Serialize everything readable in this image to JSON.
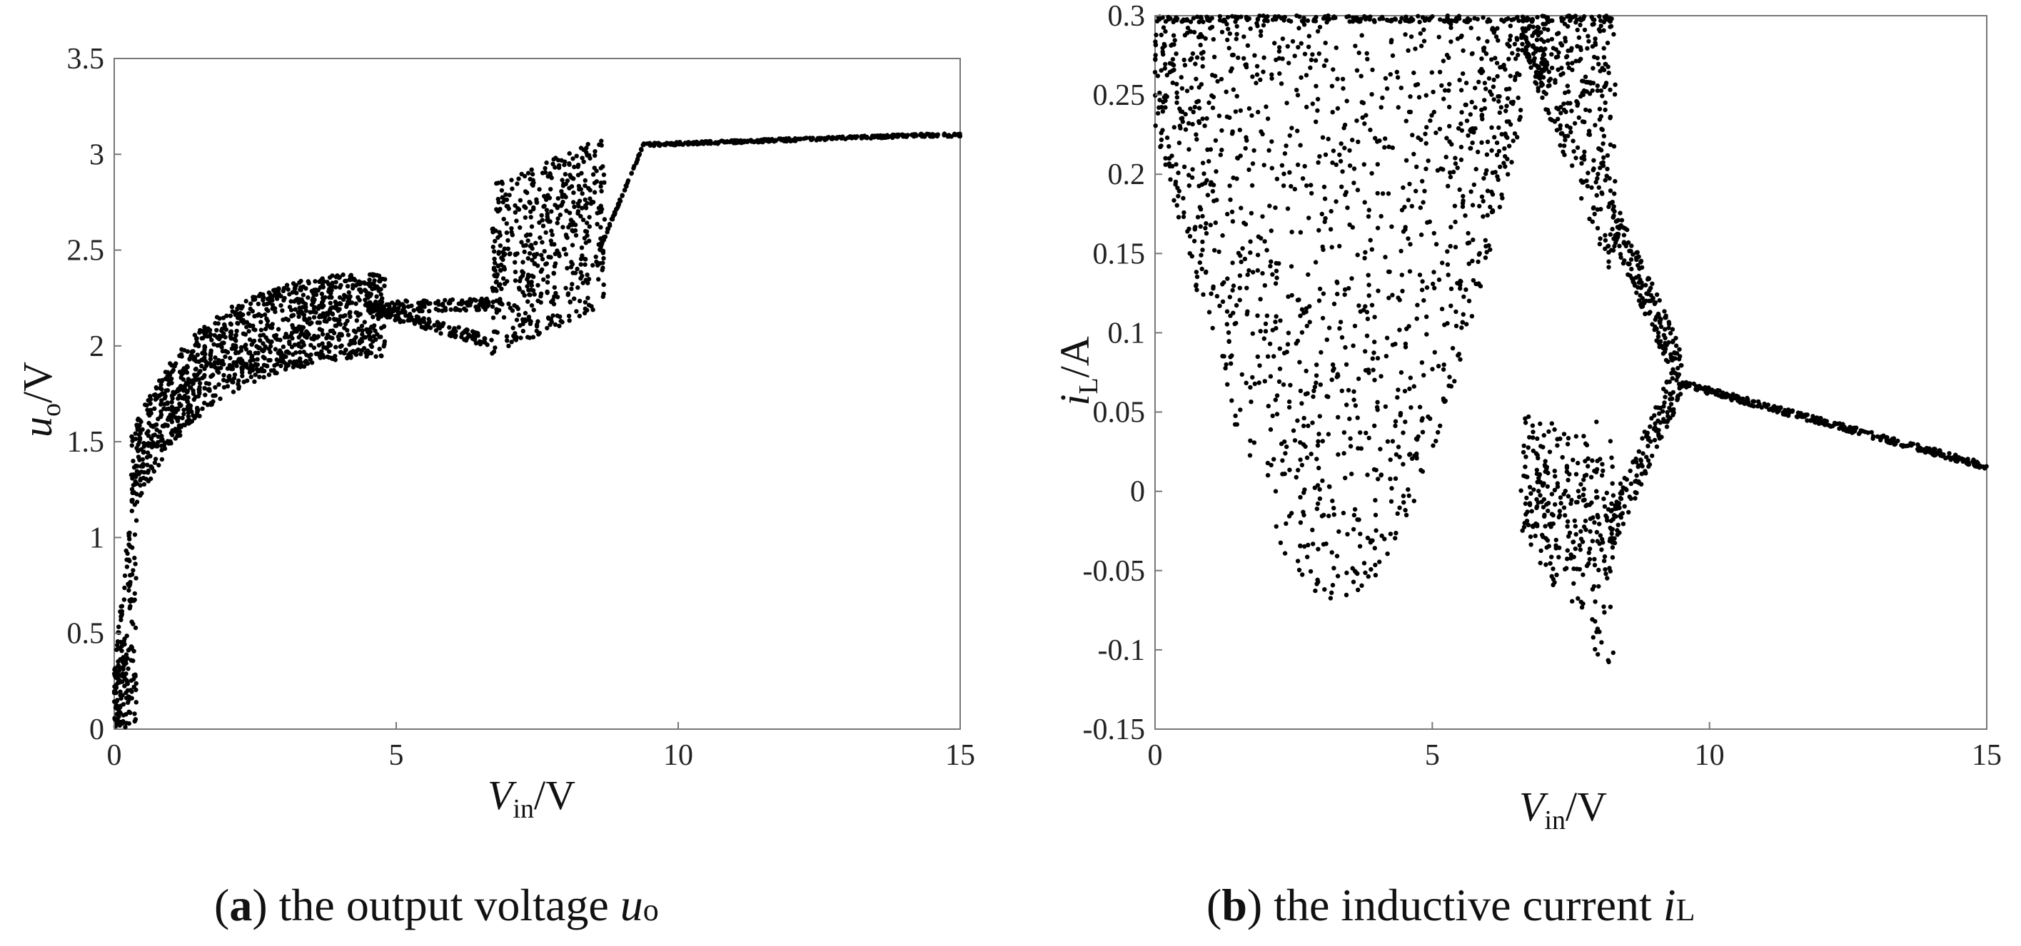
{
  "chart_data": [
    {
      "type": "scatter",
      "xlim": [
        0,
        15
      ],
      "ylim": [
        0,
        3.5
      ],
      "x_ticks": [
        "0",
        "5",
        "10",
        "15"
      ],
      "y_ticks": [
        "0",
        "0.5",
        "1",
        "1.5",
        "2",
        "2.5",
        "3",
        "3.5"
      ],
      "xlabel": {
        "main": "V",
        "sub": "in",
        "unit": "/V"
      },
      "ylabel": {
        "main": "u",
        "sub": "o",
        "unit": "/V"
      },
      "caption": {
        "letter": "a",
        "text": " the output voltage ",
        "symbol": "u",
        "sub": "o"
      },
      "grid": false,
      "description_regions": [
        {
          "x": [
            0,
            0.3
          ],
          "y": [
            0,
            1.3
          ]
        },
        {
          "x": [
            0.3,
            4.5
          ],
          "y": [
            1.3,
            2.6
          ]
        },
        {
          "x": [
            4.5,
            6.7
          ],
          "y": [
            2.0,
            2.3
          ]
        },
        {
          "x": [
            6.7,
            8.8
          ],
          "y": [
            2.0,
            3.1
          ]
        },
        {
          "x": [
            9.3,
            15
          ],
          "y": [
            3.05,
            3.11
          ]
        }
      ]
    },
    {
      "type": "scatter",
      "xlim": [
        0,
        15
      ],
      "ylim": [
        -0.15,
        0.3
      ],
      "x_ticks": [
        "0",
        "5",
        "10",
        "15"
      ],
      "y_ticks": [
        "-0.15",
        "-0.1",
        "-0.05",
        "0",
        "0.05",
        "0.1",
        "0.15",
        "0.2",
        "0.25",
        "0.3"
      ],
      "xlabel": {
        "main": "V",
        "sub": "in",
        "unit": "/V"
      },
      "ylabel": {
        "main": "i",
        "sub": "L",
        "unit": "/A"
      },
      "caption": {
        "letter": "b",
        "text": " the inductive current ",
        "symbol": "i",
        "sub": "L"
      },
      "grid": false,
      "description_regions": [
        {
          "x": [
            0,
            6.6
          ],
          "y": [
            -0.05,
            0.3
          ]
        },
        {
          "x": [
            6.6,
            8.3
          ],
          "y": [
            -0.13,
            0.3
          ]
        },
        {
          "x": [
            8.3,
            9.5
          ],
          "y": [
            -0.01,
            0.19
          ]
        },
        {
          "x": [
            9.5,
            15
          ],
          "y": [
            0.015,
            0.07
          ]
        }
      ]
    }
  ]
}
